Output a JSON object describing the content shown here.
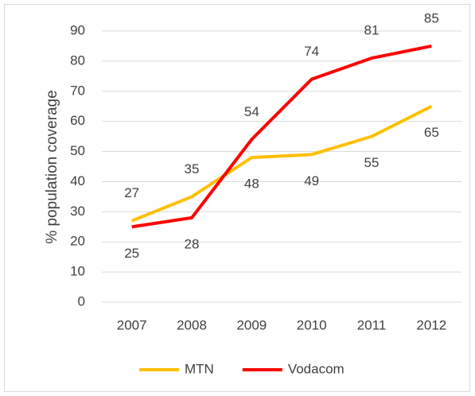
{
  "chart_data": {
    "type": "line",
    "y_label": "% population coverage",
    "categories": [
      "2007",
      "2008",
      "2009",
      "2010",
      "2011",
      "2012"
    ],
    "series": [
      {
        "name": "MTN",
        "color": "#FFC000",
        "values": [
          27,
          35,
          48,
          49,
          55,
          65
        ]
      },
      {
        "name": "Vodacom",
        "color": "#FF0000",
        "values": [
          25,
          28,
          54,
          74,
          81,
          85
        ]
      }
    ],
    "ylim": [
      0,
      90
    ],
    "yticks": [
      0,
      10,
      20,
      30,
      40,
      50,
      60,
      70,
      80,
      90
    ],
    "grid": true,
    "legend": "bottom",
    "data_labels": true
  }
}
